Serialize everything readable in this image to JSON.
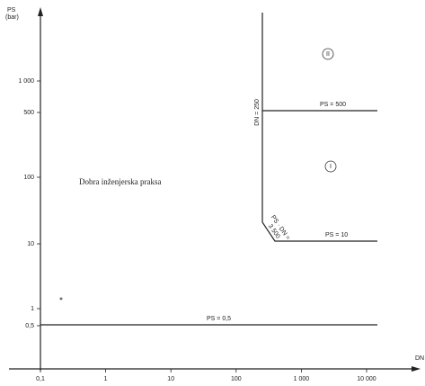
{
  "axes": {
    "y_label": [
      "PS",
      "(bar)"
    ],
    "x_label": "DN",
    "y_ticks": [
      "1 000",
      "500",
      "100",
      "10",
      "1",
      "0,5"
    ],
    "x_ticks": [
      "0,1",
      "1",
      "10",
      "100",
      "1 000",
      "10 000"
    ]
  },
  "annotations": {
    "region_sep": "Dobra inženjerska praksa",
    "ps_500": "PS = 500",
    "ps_10": "PS = 10",
    "ps_05": "PS = 0,5",
    "dn_250": "DN = 250",
    "ps_dn": [
      "PS · DN =",
      "3 500"
    ],
    "category_2": "II",
    "category_1": "I"
  }
}
